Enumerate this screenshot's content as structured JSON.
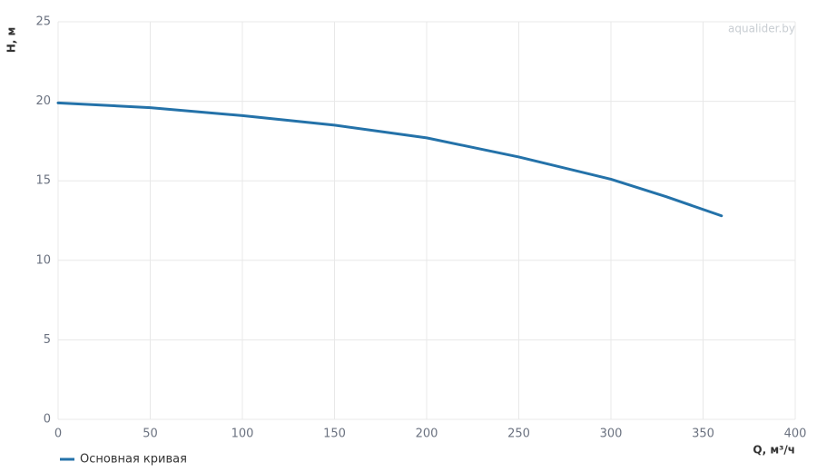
{
  "chart_data": {
    "type": "line",
    "x_label": "Q, м³/ч",
    "y_label": "H, м",
    "watermark": "aqualider.by",
    "x": [
      0,
      50,
      100,
      150,
      200,
      250,
      300,
      330,
      360
    ],
    "series": [
      {
        "name": "Основная кривая",
        "color": "#2472a9",
        "values": [
          19.9,
          19.6,
          19.1,
          18.5,
          17.7,
          16.5,
          15.1,
          14.0,
          12.8
        ]
      }
    ],
    "xlim": [
      0,
      400
    ],
    "xticks": [
      0,
      50,
      100,
      150,
      200,
      250,
      300,
      350,
      400
    ],
    "ylim": [
      0,
      25
    ],
    "yticks": [
      0,
      5,
      10,
      15,
      20,
      25
    ],
    "grid": true,
    "legend": "bottom-left"
  }
}
